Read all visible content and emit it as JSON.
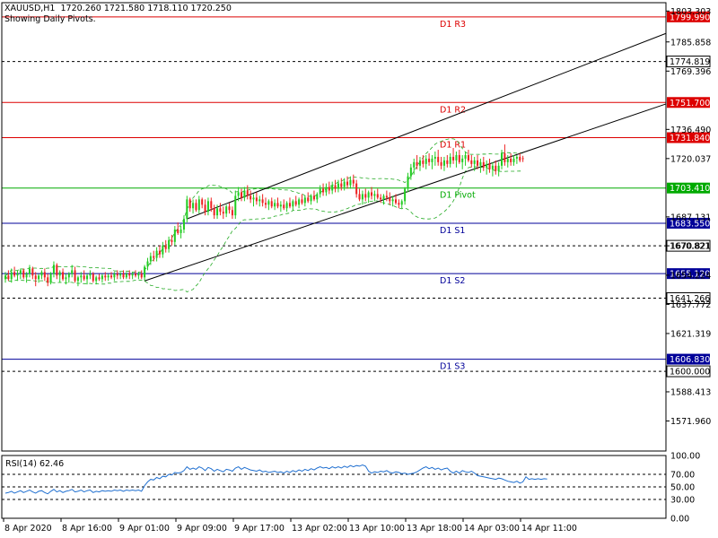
{
  "window": {
    "symbol_line": "XAUUSD,H1  1720.260 1721.580 1718.110 1720.250",
    "subtitle": "Showing Daily Pivots."
  },
  "colors": {
    "bull": "#22cc22",
    "bear": "#ee2222",
    "resistance": "#dd0000",
    "support": "#000099",
    "pivot": "#00aa00",
    "dashed_level": "#000000",
    "channel": "#000000",
    "bands": "#22aa22",
    "rsi_line": "#1f6fd0",
    "axis": "#000000"
  },
  "chart_data": [
    {
      "type": "candlestick",
      "symbol": "XAUUSD",
      "timeframe": "H1",
      "ohlc_header": {
        "open": 1720.26,
        "high": 1721.58,
        "low": 1718.11,
        "close": 1720.25
      },
      "ylim": [
        1555,
        1808
      ],
      "y_ticks": [
        "1803.303",
        "1785.858",
        "1769.396",
        "1736.490",
        "1720.037",
        "1687.131",
        "1670.821",
        "1654.224",
        "1637.772",
        "1621.319",
        "1588.413",
        "1571.960"
      ],
      "x_ticks": [
        "8 Apr 2020",
        "8 Apr 16:00",
        "9 Apr 01:00",
        "9 Apr 09:00",
        "9 Apr 17:00",
        "13 Apr 02:00",
        "13 Apr 10:00",
        "13 Apr 18:00",
        "14 Apr 03:00",
        "14 Apr 11:00"
      ],
      "pivot_levels": [
        {
          "label": "D1 R3",
          "value": 1799.99,
          "kind": "resistance"
        },
        {
          "label": "D1 R2",
          "value": 1751.7,
          "kind": "resistance"
        },
        {
          "label": "D1 R1",
          "value": 1731.84,
          "kind": "resistance"
        },
        {
          "label": "D1 Pivot",
          "value": 1703.41,
          "kind": "pivot"
        },
        {
          "label": "D1 S1",
          "value": 1683.55,
          "kind": "support"
        },
        {
          "label": "D1 S2",
          "value": 1655.12,
          "kind": "support"
        },
        {
          "label": "D1 S3",
          "value": 1606.83,
          "kind": "support"
        }
      ],
      "horizontal_levels": [
        1774.819,
        1670.821,
        1641.266,
        1600.0
      ],
      "channel": {
        "upper": [
          {
            "bar": 60,
            "price": 1686
          },
          {
            "bar": 184,
            "price": 1768
          }
        ],
        "lower": [
          {
            "bar": 46,
            "price": 1651
          },
          {
            "bar": 184,
            "price": 1731
          }
        ]
      },
      "candles": [
        [
          1652,
          1656,
          1650,
          1654
        ],
        [
          1654,
          1657,
          1651,
          1652
        ],
        [
          1652,
          1658,
          1650,
          1656
        ],
        [
          1656,
          1659,
          1653,
          1654
        ],
        [
          1654,
          1657,
          1651,
          1655
        ],
        [
          1655,
          1658,
          1652,
          1657
        ],
        [
          1657,
          1658,
          1652,
          1653
        ],
        [
          1653,
          1656,
          1650,
          1655
        ],
        [
          1655,
          1660,
          1653,
          1658
        ],
        [
          1658,
          1659,
          1652,
          1654
        ],
        [
          1654,
          1656,
          1648,
          1652
        ],
        [
          1652,
          1655,
          1650,
          1654
        ],
        [
          1654,
          1657,
          1652,
          1656
        ],
        [
          1656,
          1658,
          1651,
          1653
        ],
        [
          1653,
          1655,
          1648,
          1650
        ],
        [
          1650,
          1656,
          1649,
          1655
        ],
        [
          1655,
          1662,
          1653,
          1660
        ],
        [
          1660,
          1661,
          1652,
          1654
        ],
        [
          1654,
          1657,
          1650,
          1656
        ],
        [
          1656,
          1658,
          1651,
          1652
        ],
        [
          1652,
          1655,
          1649,
          1653
        ],
        [
          1653,
          1656,
          1650,
          1655
        ],
        [
          1655,
          1660,
          1653,
          1657
        ],
        [
          1657,
          1659,
          1650,
          1651
        ],
        [
          1651,
          1654,
          1648,
          1653
        ],
        [
          1653,
          1656,
          1650,
          1654
        ],
        [
          1654,
          1657,
          1651,
          1652
        ],
        [
          1652,
          1655,
          1649,
          1654
        ],
        [
          1654,
          1657,
          1652,
          1655
        ],
        [
          1655,
          1656,
          1650,
          1651
        ],
        [
          1651,
          1654,
          1649,
          1653
        ],
        [
          1653,
          1655,
          1651,
          1652
        ],
        [
          1652,
          1655,
          1650,
          1654
        ],
        [
          1654,
          1656,
          1651,
          1653
        ],
        [
          1653,
          1655,
          1651,
          1654
        ],
        [
          1654,
          1656,
          1652,
          1653
        ],
        [
          1653,
          1656,
          1651,
          1655
        ],
        [
          1655,
          1657,
          1652,
          1654
        ],
        [
          1654,
          1656,
          1652,
          1655
        ],
        [
          1655,
          1657,
          1652,
          1653
        ],
        [
          1653,
          1656,
          1652,
          1655
        ],
        [
          1655,
          1657,
          1652,
          1654
        ],
        [
          1654,
          1656,
          1652,
          1655
        ],
        [
          1655,
          1657,
          1653,
          1654
        ],
        [
          1654,
          1656,
          1652,
          1655
        ],
        [
          1655,
          1657,
          1652,
          1653
        ],
        [
          1653,
          1660,
          1651,
          1659
        ],
        [
          1659,
          1664,
          1657,
          1662
        ],
        [
          1662,
          1667,
          1660,
          1665
        ],
        [
          1665,
          1668,
          1662,
          1664
        ],
        [
          1664,
          1670,
          1662,
          1668
        ],
        [
          1668,
          1671,
          1664,
          1666
        ],
        [
          1666,
          1673,
          1664,
          1671
        ],
        [
          1671,
          1674,
          1667,
          1669
        ],
        [
          1669,
          1676,
          1667,
          1674
        ],
        [
          1674,
          1677,
          1671,
          1673
        ],
        [
          1673,
          1682,
          1671,
          1680
        ],
        [
          1680,
          1684,
          1677,
          1678
        ],
        [
          1678,
          1682,
          1675,
          1680
        ],
        [
          1680,
          1688,
          1678,
          1686
        ],
        [
          1686,
          1699,
          1684,
          1697
        ],
        [
          1697,
          1698,
          1690,
          1692
        ],
        [
          1692,
          1697,
          1689,
          1695
        ],
        [
          1695,
          1697,
          1690,
          1691
        ],
        [
          1691,
          1699,
          1689,
          1697
        ],
        [
          1697,
          1698,
          1692,
          1694
        ],
        [
          1694,
          1697,
          1688,
          1690
        ],
        [
          1690,
          1698,
          1688,
          1696
        ],
        [
          1696,
          1698,
          1690,
          1692
        ],
        [
          1692,
          1694,
          1686,
          1688
        ],
        [
          1688,
          1694,
          1686,
          1692
        ],
        [
          1692,
          1695,
          1688,
          1690
        ],
        [
          1690,
          1693,
          1686,
          1689
        ],
        [
          1689,
          1694,
          1687,
          1693
        ],
        [
          1693,
          1695,
          1689,
          1691
        ],
        [
          1691,
          1693,
          1686,
          1688
        ],
        [
          1688,
          1702,
          1686,
          1699
        ],
        [
          1699,
          1704,
          1696,
          1701
        ],
        [
          1701,
          1703,
          1696,
          1698
        ],
        [
          1698,
          1704,
          1696,
          1702
        ],
        [
          1702,
          1705,
          1697,
          1699
        ],
        [
          1699,
          1702,
          1695,
          1697
        ],
        [
          1697,
          1700,
          1693,
          1698
        ],
        [
          1698,
          1701,
          1694,
          1696
        ],
        [
          1696,
          1699,
          1693,
          1697
        ],
        [
          1697,
          1700,
          1693,
          1695
        ],
        [
          1695,
          1698,
          1692,
          1694
        ],
        [
          1694,
          1697,
          1691,
          1696
        ],
        [
          1696,
          1698,
          1692,
          1693
        ],
        [
          1693,
          1697,
          1691,
          1695
        ],
        [
          1695,
          1698,
          1692,
          1693
        ],
        [
          1693,
          1696,
          1690,
          1694
        ],
        [
          1694,
          1697,
          1691,
          1692
        ],
        [
          1692,
          1696,
          1690,
          1695
        ],
        [
          1695,
          1698,
          1692,
          1693
        ],
        [
          1693,
          1697,
          1691,
          1696
        ],
        [
          1696,
          1699,
          1693,
          1694
        ],
        [
          1694,
          1698,
          1692,
          1697
        ],
        [
          1697,
          1700,
          1694,
          1695
        ],
        [
          1695,
          1699,
          1693,
          1698
        ],
        [
          1698,
          1701,
          1695,
          1696
        ],
        [
          1696,
          1700,
          1694,
          1699
        ],
        [
          1699,
          1702,
          1696,
          1697
        ],
        [
          1697,
          1701,
          1695,
          1700
        ],
        [
          1700,
          1705,
          1698,
          1703
        ],
        [
          1703,
          1706,
          1699,
          1701
        ],
        [
          1701,
          1706,
          1699,
          1704
        ],
        [
          1704,
          1707,
          1700,
          1702
        ],
        [
          1702,
          1707,
          1700,
          1705
        ],
        [
          1705,
          1708,
          1701,
          1703
        ],
        [
          1703,
          1708,
          1701,
          1706
        ],
        [
          1706,
          1709,
          1702,
          1704
        ],
        [
          1704,
          1709,
          1702,
          1707
        ],
        [
          1707,
          1710,
          1703,
          1705
        ],
        [
          1705,
          1710,
          1703,
          1708
        ],
        [
          1708,
          1711,
          1704,
          1706
        ],
        [
          1706,
          1708,
          1698,
          1700
        ],
        [
          1700,
          1703,
          1696,
          1697
        ],
        [
          1697,
          1702,
          1694,
          1700
        ],
        [
          1700,
          1703,
          1696,
          1698
        ],
        [
          1698,
          1702,
          1695,
          1701
        ],
        [
          1701,
          1704,
          1697,
          1699
        ],
        [
          1699,
          1702,
          1696,
          1700
        ],
        [
          1700,
          1703,
          1697,
          1698
        ],
        [
          1698,
          1700,
          1695,
          1697
        ],
        [
          1697,
          1700,
          1694,
          1699
        ],
        [
          1699,
          1702,
          1696,
          1698
        ],
        [
          1698,
          1701,
          1694,
          1696
        ],
        [
          1696,
          1699,
          1693,
          1697
        ],
        [
          1697,
          1700,
          1694,
          1695
        ],
        [
          1695,
          1697,
          1692,
          1694
        ],
        [
          1694,
          1697,
          1692,
          1696
        ],
        [
          1696,
          1704,
          1694,
          1703
        ],
        [
          1703,
          1712,
          1701,
          1710
        ],
        [
          1710,
          1717,
          1708,
          1715
        ],
        [
          1715,
          1720,
          1711,
          1718
        ],
        [
          1718,
          1722,
          1714,
          1716
        ],
        [
          1716,
          1721,
          1713,
          1719
        ],
        [
          1719,
          1722,
          1715,
          1717
        ],
        [
          1717,
          1722,
          1714,
          1720
        ],
        [
          1720,
          1723,
          1716,
          1718
        ],
        [
          1718,
          1722,
          1714,
          1720
        ],
        [
          1720,
          1724,
          1716,
          1721
        ],
        [
          1721,
          1725,
          1716,
          1718
        ],
        [
          1718,
          1721,
          1714,
          1716
        ],
        [
          1716,
          1721,
          1713,
          1719
        ],
        [
          1719,
          1722,
          1715,
          1717
        ],
        [
          1717,
          1723,
          1715,
          1721
        ],
        [
          1721,
          1726,
          1717,
          1719
        ],
        [
          1719,
          1724,
          1715,
          1722
        ],
        [
          1722,
          1725,
          1717,
          1718
        ],
        [
          1718,
          1722,
          1714,
          1720
        ],
        [
          1720,
          1724,
          1716,
          1722
        ],
        [
          1722,
          1725,
          1718,
          1719
        ],
        [
          1719,
          1722,
          1715,
          1717
        ],
        [
          1717,
          1721,
          1713,
          1719
        ],
        [
          1719,
          1722,
          1714,
          1716
        ],
        [
          1716,
          1720,
          1712,
          1718
        ],
        [
          1718,
          1721,
          1713,
          1715
        ],
        [
          1715,
          1719,
          1711,
          1717
        ],
        [
          1717,
          1720,
          1712,
          1714
        ],
        [
          1714,
          1718,
          1710,
          1716
        ],
        [
          1716,
          1719,
          1711,
          1713
        ],
        [
          1713,
          1718,
          1710,
          1716
        ],
        [
          1716,
          1725,
          1714,
          1723
        ],
        [
          1723,
          1728,
          1716,
          1718
        ],
        [
          1718,
          1722,
          1715,
          1720
        ],
        [
          1720,
          1723,
          1716,
          1718
        ],
        [
          1718,
          1722,
          1716,
          1720
        ],
        [
          1720,
          1722,
          1717,
          1721
        ],
        [
          1721,
          1723,
          1718,
          1719
        ],
        [
          1720.26,
          1721.58,
          1718.11,
          1720.25
        ]
      ]
    },
    {
      "type": "line",
      "indicator": "RSI(14)",
      "value_label": "62.46",
      "ylim": [
        0,
        100
      ],
      "levels": [
        70,
        50,
        30
      ],
      "y_ticks": [
        "100.00",
        "70.00",
        "50.00",
        "30.00",
        "0.00"
      ],
      "values": [
        40,
        41,
        43,
        40,
        42,
        44,
        41,
        43,
        45,
        42,
        40,
        43,
        44,
        41,
        39,
        43,
        46,
        42,
        44,
        41,
        43,
        44,
        46,
        42,
        43,
        45,
        42,
        44,
        45,
        41,
        43,
        42,
        44,
        43,
        44,
        43,
        45,
        44,
        45,
        43,
        45,
        44,
        45,
        44,
        45,
        43,
        52,
        58,
        62,
        61,
        65,
        63,
        67,
        66,
        70,
        69,
        73,
        72,
        73,
        76,
        82,
        78,
        80,
        78,
        82,
        80,
        76,
        81,
        79,
        75,
        78,
        76,
        74,
        78,
        77,
        75,
        80,
        82,
        78,
        81,
        79,
        77,
        76,
        75,
        77,
        74,
        75,
        73,
        74,
        75,
        73,
        74,
        72,
        75,
        73,
        76,
        74,
        77,
        75,
        78,
        76,
        79,
        77,
        80,
        82,
        80,
        81,
        79,
        82,
        80,
        82,
        80,
        83,
        81,
        84,
        82,
        84,
        83,
        85,
        83,
        75,
        72,
        74,
        73,
        75,
        74,
        76,
        73,
        72,
        74,
        73,
        71,
        72,
        70,
        71,
        72,
        74,
        77,
        80,
        82,
        79,
        81,
        78,
        80,
        77,
        79,
        80,
        75,
        72,
        75,
        72,
        76,
        74,
        73,
        75,
        72,
        68,
        67,
        66,
        65,
        64,
        63,
        62,
        64,
        63,
        61,
        59,
        58,
        57,
        59,
        56,
        58,
        66,
        62,
        63,
        62,
        63,
        62,
        63,
        62.46
      ]
    }
  ]
}
